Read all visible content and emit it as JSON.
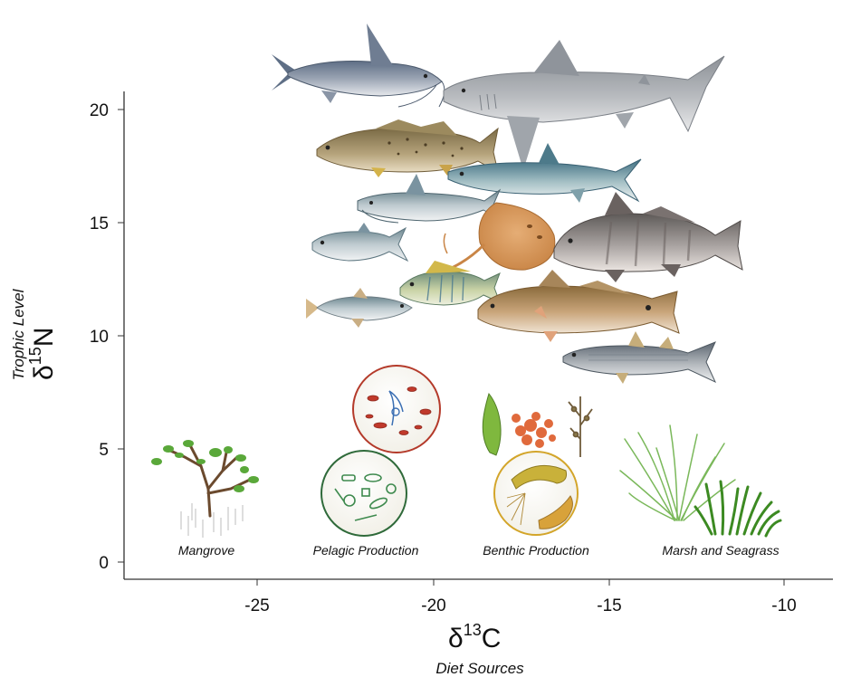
{
  "y_axis": {
    "symbol": "δ",
    "superscript": "15",
    "element": "N",
    "caption": "Trophic Level",
    "ticks": [
      "0",
      "5",
      "10",
      "15",
      "20"
    ]
  },
  "x_axis": {
    "symbol": "δ",
    "superscript": "13",
    "element": "C",
    "caption": "Diet Sources",
    "ticks": [
      "-25",
      "-20",
      "-15",
      "-10"
    ]
  },
  "diet_sources": [
    "Mangrove",
    "Pelagic Production",
    "Benthic Production",
    "Marsh and Seagrass"
  ],
  "fish_illustrations": [
    "hardhead-catfish",
    "bull-shark",
    "spotted-seatrout",
    "ladyfish",
    "gafftopsail-catfish",
    "atlantic-stingray",
    "black-drum",
    "menhaden",
    "pinfish",
    "red-drum",
    "bay-anchovy",
    "striped-mullet"
  ],
  "colors": {
    "axis": "#333333",
    "mangrove_leaf": "#5aa83a",
    "mangrove_trunk": "#6b4a2e",
    "grass": "#4f9a2b",
    "pelagic_circle_red": "#b43a2a",
    "pelagic_circle_green": "#2f6a3a",
    "benthic_circle": "#d3a52a"
  }
}
